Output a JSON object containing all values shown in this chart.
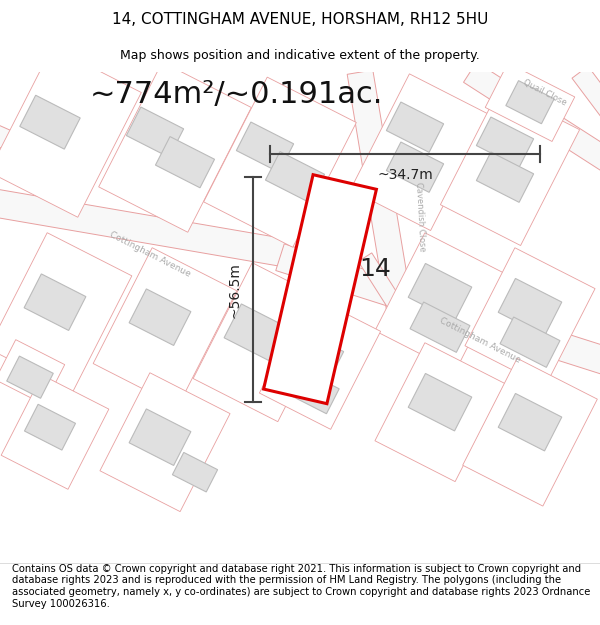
{
  "title_line1": "14, COTTINGHAM AVENUE, HORSHAM, RH12 5HU",
  "title_line2": "Map shows position and indicative extent of the property.",
  "footer_text": "Contains OS data © Crown copyright and database right 2021. This information is subject to Crown copyright and database rights 2023 and is reproduced with the permission of HM Land Registry. The polygons (including the associated geometry, namely x, y co-ordinates) are subject to Crown copyright and database rights 2023 Ordnance Survey 100026316.",
  "area_label": "~774m²/~0.191ac.",
  "width_label": "~34.7m",
  "height_label": "~56.5m",
  "property_number": "14",
  "map_bg": "#ffffff",
  "road_color": "#e8a0a0",
  "building_fill": "#e0e0e0",
  "building_stroke": "#bbbbbb",
  "property_stroke": "#dd0000",
  "property_fill": "#ffffff",
  "dim_color": "#444444",
  "street_label_color": "#aaaaaa",
  "title_fontsize": 11,
  "subtitle_fontsize": 9,
  "footer_fontsize": 7.2,
  "area_fontsize": 22,
  "dim_fontsize": 10,
  "prop_num_fontsize": 18
}
